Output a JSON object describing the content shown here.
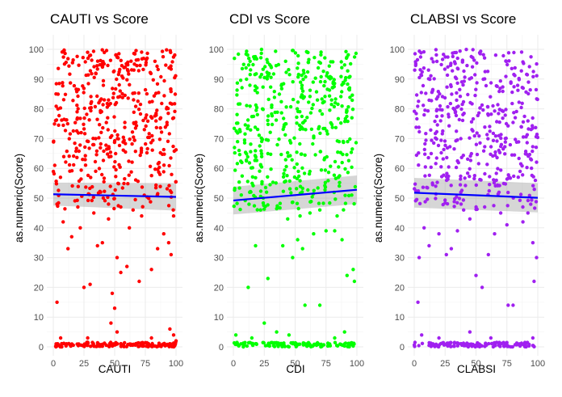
{
  "chart_data": [
    {
      "type": "scatter",
      "title": "CAUTI vs Score",
      "xlabel": "CAUTI",
      "ylabel": "as.numeric(Score)",
      "xlim": [
        0,
        100
      ],
      "ylim": [
        0,
        100
      ],
      "x_ticks": [
        0,
        25,
        50,
        75,
        100
      ],
      "y_ticks": [
        0,
        10,
        20,
        30,
        40,
        50,
        60,
        70,
        80,
        90,
        100
      ],
      "point_color": "#ff0000",
      "grid": true,
      "trend": {
        "method": "lm",
        "color": "#0000ff",
        "start": 51.3,
        "end": 50.4,
        "ci_start": [
          47.5,
          55.2
        ],
        "ci_end": [
          45.8,
          55.0
        ]
      },
      "points": {
        "seed": 11,
        "low_band_count": 140,
        "low_band_range": [
          0,
          1.5
        ],
        "scattered_low": [
          [
            3,
            15
          ],
          [
            6,
            3
          ],
          [
            28,
            3
          ],
          [
            47,
            8
          ],
          [
            50,
            13
          ],
          [
            52,
            5
          ],
          [
            80,
            3
          ],
          [
            95,
            6
          ],
          [
            98,
            4
          ],
          [
            100,
            2
          ],
          [
            3,
            48
          ],
          [
            8,
            42
          ],
          [
            12,
            33
          ],
          [
            15,
            37
          ],
          [
            22,
            40
          ],
          [
            25,
            20
          ],
          [
            30,
            21
          ],
          [
            36,
            34
          ],
          [
            40,
            35
          ],
          [
            45,
            43
          ],
          [
            48,
            18
          ],
          [
            52,
            30
          ],
          [
            55,
            25
          ],
          [
            60,
            27
          ],
          [
            62,
            40
          ],
          [
            70,
            22
          ],
          [
            80,
            26
          ],
          [
            85,
            33
          ],
          [
            90,
            38
          ],
          [
            94,
            35
          ],
          [
            96,
            31
          ],
          [
            98,
            44
          ],
          [
            45,
            48
          ],
          [
            55,
            47
          ],
          [
            65,
            46
          ],
          [
            72,
            44
          ],
          [
            20,
            47
          ],
          [
            33,
            45
          ]
        ],
        "upper_count": 470,
        "upper_range": [
          46,
          100
        ]
      }
    },
    {
      "type": "scatter",
      "title": "CDI vs Score",
      "xlabel": "CDI",
      "ylabel": "as.numeric(Score)",
      "xlim": [
        0,
        100
      ],
      "ylim": [
        0,
        100
      ],
      "x_ticks": [
        0,
        25,
        50,
        75,
        100
      ],
      "y_ticks": [
        0,
        10,
        20,
        30,
        40,
        50,
        60,
        70,
        80,
        90,
        100
      ],
      "point_color": "#00ff00",
      "grid": true,
      "trend": {
        "method": "lm",
        "color": "#0000ff",
        "start": 49.2,
        "end": 52.8,
        "ci_start": [
          44.5,
          53.8
        ],
        "ci_end": [
          48.0,
          57.6
        ]
      },
      "points": {
        "seed": 29,
        "low_band_count": 120,
        "low_band_range": [
          0,
          1.5
        ],
        "scattered_low": [
          [
            2,
            4
          ],
          [
            15,
            3
          ],
          [
            25,
            8
          ],
          [
            35,
            5
          ],
          [
            45,
            4
          ],
          [
            58,
            14
          ],
          [
            70,
            14
          ],
          [
            82,
            3
          ],
          [
            90,
            5
          ],
          [
            12,
            20
          ],
          [
            28,
            23
          ],
          [
            40,
            34
          ],
          [
            48,
            30
          ],
          [
            52,
            36
          ],
          [
            56,
            33
          ],
          [
            65,
            38
          ],
          [
            75,
            39
          ],
          [
            82,
            39
          ],
          [
            88,
            36
          ],
          [
            92,
            24
          ],
          [
            98,
            22
          ],
          [
            97,
            26
          ],
          [
            18,
            34
          ],
          [
            22,
            46
          ],
          [
            44,
            43
          ],
          [
            54,
            44
          ],
          [
            62,
            45
          ],
          [
            70,
            46
          ],
          [
            84,
            44
          ]
        ],
        "upper_count": 470,
        "upper_range": [
          46,
          100
        ]
      }
    },
    {
      "type": "scatter",
      "title": "CLABSI vs Score",
      "xlabel": "CLABSI",
      "ylabel": "as.numeric(Score)",
      "xlim": [
        0,
        100
      ],
      "ylim": [
        0,
        100
      ],
      "x_ticks": [
        0,
        25,
        50,
        75,
        100
      ],
      "y_ticks": [
        0,
        10,
        20,
        30,
        40,
        50,
        60,
        70,
        80,
        90,
        100
      ],
      "point_color": "#a020f0",
      "grid": true,
      "trend": {
        "method": "lm",
        "color": "#0000ff",
        "start": 51.8,
        "end": 50.1,
        "ci_start": [
          46.8,
          56.8
        ],
        "ci_end": [
          45.2,
          55.0
        ]
      },
      "points": {
        "seed": 47,
        "low_band_count": 125,
        "low_band_range": [
          0,
          1.5
        ],
        "scattered_low": [
          [
            3,
            15
          ],
          [
            6,
            4
          ],
          [
            20,
            3
          ],
          [
            45,
            5
          ],
          [
            62,
            3
          ],
          [
            76,
            14
          ],
          [
            80,
            14
          ],
          [
            96,
            3
          ],
          [
            97,
            22
          ],
          [
            99,
            30
          ],
          [
            4,
            30
          ],
          [
            8,
            40
          ],
          [
            12,
            34
          ],
          [
            20,
            38
          ],
          [
            26,
            31
          ],
          [
            30,
            33
          ],
          [
            35,
            39
          ],
          [
            45,
            43
          ],
          [
            50,
            24
          ],
          [
            55,
            20
          ],
          [
            60,
            31
          ],
          [
            65,
            38
          ],
          [
            70,
            45
          ],
          [
            75,
            41
          ],
          [
            88,
            42
          ],
          [
            92,
            45
          ],
          [
            96,
            35
          ],
          [
            40,
            46
          ],
          [
            57,
            47
          ]
        ],
        "upper_count": 470,
        "upper_range": [
          46,
          100
        ]
      }
    }
  ]
}
